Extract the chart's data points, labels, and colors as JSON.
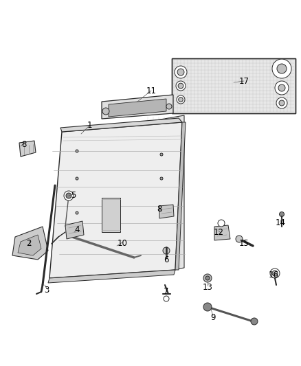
{
  "bg_color": "#ffffff",
  "line_color": "#2a2a2a",
  "fill_light": "#f2f2f2",
  "fill_mid": "#e0e0e0",
  "fill_dark": "#c8c8c8",
  "fill_inner": "#d5d5d5",
  "labels": [
    [
      "1",
      130,
      183
    ],
    [
      "2",
      42,
      355
    ],
    [
      "3",
      68,
      422
    ],
    [
      "4",
      112,
      335
    ],
    [
      "5",
      107,
      285
    ],
    [
      "6",
      242,
      378
    ],
    [
      "7",
      242,
      425
    ],
    [
      "8",
      35,
      210
    ],
    [
      "8",
      232,
      305
    ],
    [
      "9",
      310,
      462
    ],
    [
      "10",
      178,
      355
    ],
    [
      "11",
      220,
      132
    ],
    [
      "12",
      318,
      338
    ],
    [
      "13",
      302,
      418
    ],
    [
      "14",
      408,
      325
    ],
    [
      "15",
      355,
      355
    ],
    [
      "16",
      398,
      400
    ],
    [
      "17",
      355,
      118
    ]
  ]
}
